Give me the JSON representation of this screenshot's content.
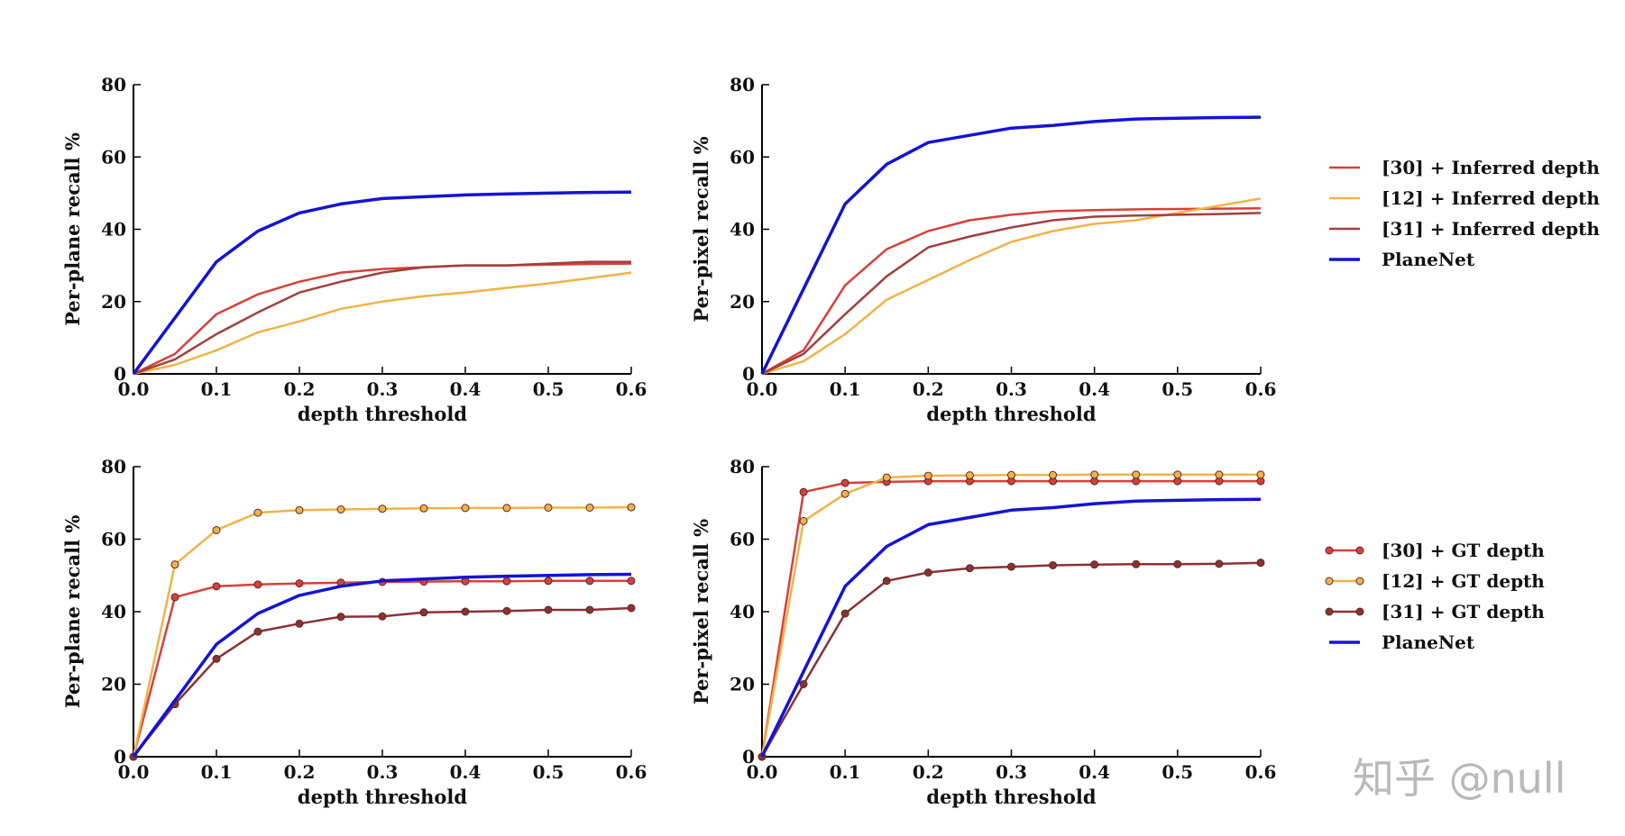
{
  "watermark": "知乎 @null",
  "colors": {
    "method30": "#d7403a",
    "method12": "#f0b347",
    "method31": "#8b3232",
    "planenet": "#1414d2"
  },
  "legends": [
    {
      "entries": [
        {
          "label": "[30] + Inferred depth",
          "color": "#d7403a",
          "marker": false
        },
        {
          "label": "[12] + Inferred depth",
          "color": "#f0b347",
          "marker": false
        },
        {
          "label": "[31] + Inferred depth",
          "color": "#a04040",
          "marker": false
        },
        {
          "label": "PlaneNet",
          "color": "#1414d2",
          "marker": false,
          "thick": true
        }
      ]
    },
    {
      "entries": [
        {
          "label": "[30] + GT depth",
          "color": "#d7403a",
          "marker": true
        },
        {
          "label": "[12] + GT depth",
          "color": "#f0b347",
          "marker": true
        },
        {
          "label": "[31] + GT depth",
          "color": "#8b3232",
          "marker": true
        },
        {
          "label": "PlaneNet",
          "color": "#1414d2",
          "marker": false,
          "thick": true
        }
      ]
    }
  ],
  "chart_data": [
    {
      "type": "line",
      "xlabel": "depth threshold",
      "ylabel": "Per-plane recall %",
      "xlim": [
        0.0,
        0.6
      ],
      "ylim": [
        0,
        80
      ],
      "xticks": [
        "0.0",
        "0.1",
        "0.2",
        "0.3",
        "0.4",
        "0.5",
        "0.6"
      ],
      "yticks": [
        "0",
        "20",
        "40",
        "60",
        "80"
      ],
      "x": [
        0.0,
        0.05,
        0.1,
        0.15,
        0.2,
        0.25,
        0.3,
        0.35,
        0.4,
        0.45,
        0.5,
        0.55,
        0.6
      ],
      "series": [
        {
          "name": "[30] + Inferred depth",
          "color": "#d7403a",
          "marker": false,
          "values": [
            0,
            5.5,
            16.5,
            22,
            25.5,
            28,
            29,
            29.5,
            30,
            30,
            30.2,
            30.4,
            30.5
          ]
        },
        {
          "name": "[12] + Inferred depth",
          "color": "#f0b347",
          "marker": false,
          "values": [
            0,
            2.5,
            6.5,
            11.5,
            14.5,
            18,
            20,
            21.5,
            22.5,
            23.8,
            25,
            26.5,
            28
          ]
        },
        {
          "name": "[31] + Inferred depth",
          "color": "#a04040",
          "marker": false,
          "values": [
            0,
            4,
            11,
            17,
            22.5,
            25.5,
            28,
            29.5,
            30,
            30,
            30.5,
            31,
            31
          ]
        },
        {
          "name": "PlaneNet",
          "color": "#1414d2",
          "marker": false,
          "thick": true,
          "values": [
            0,
            15.5,
            31,
            39.5,
            44.5,
            47,
            48.5,
            49,
            49.5,
            49.8,
            50,
            50.2,
            50.3
          ]
        }
      ]
    },
    {
      "type": "line",
      "xlabel": "depth threshold",
      "ylabel": "Per-pixel recall %",
      "xlim": [
        0.0,
        0.6
      ],
      "ylim": [
        0,
        80
      ],
      "xticks": [
        "0.0",
        "0.1",
        "0.2",
        "0.3",
        "0.4",
        "0.5",
        "0.6"
      ],
      "yticks": [
        "0",
        "20",
        "40",
        "60",
        "80"
      ],
      "x": [
        0.0,
        0.05,
        0.1,
        0.15,
        0.2,
        0.25,
        0.3,
        0.35,
        0.4,
        0.45,
        0.5,
        0.55,
        0.6
      ],
      "series": [
        {
          "name": "[30] + Inferred depth",
          "color": "#d7403a",
          "marker": false,
          "values": [
            0,
            6.5,
            24.5,
            34.5,
            39.5,
            42.5,
            44,
            45,
            45.3,
            45.5,
            45.6,
            45.7,
            45.8
          ]
        },
        {
          "name": "[12] + Inferred depth",
          "color": "#f0b347",
          "marker": false,
          "values": [
            0,
            3.5,
            11,
            20.5,
            26,
            31.5,
            36.5,
            39.5,
            41.5,
            42.5,
            44.5,
            46.5,
            48.5
          ]
        },
        {
          "name": "[31] + Inferred depth",
          "color": "#a04040",
          "marker": false,
          "values": [
            0,
            5.5,
            16.5,
            27,
            35,
            38,
            40.5,
            42.5,
            43.5,
            43.8,
            44,
            44.2,
            44.5
          ]
        },
        {
          "name": "PlaneNet",
          "color": "#1414d2",
          "marker": false,
          "thick": true,
          "values": [
            0,
            23.5,
            47,
            58,
            64,
            66,
            68,
            68.7,
            69.8,
            70.5,
            70.7,
            70.9,
            71
          ]
        }
      ]
    },
    {
      "type": "line",
      "xlabel": "depth threshold",
      "ylabel": "Per-plane recall %",
      "xlim": [
        0.0,
        0.6
      ],
      "ylim": [
        0,
        80
      ],
      "xticks": [
        "0.0",
        "0.1",
        "0.2",
        "0.3",
        "0.4",
        "0.5",
        "0.6"
      ],
      "yticks": [
        "0",
        "20",
        "40",
        "60",
        "80"
      ],
      "x": [
        0.0,
        0.05,
        0.1,
        0.15,
        0.2,
        0.25,
        0.3,
        0.35,
        0.4,
        0.45,
        0.5,
        0.55,
        0.6
      ],
      "series": [
        {
          "name": "[30] + GT depth",
          "color": "#d7403a",
          "marker": true,
          "values": [
            0,
            44,
            47,
            47.5,
            47.8,
            48,
            48.2,
            48.3,
            48.4,
            48.4,
            48.5,
            48.5,
            48.5
          ]
        },
        {
          "name": "[12] + GT depth",
          "color": "#f0b347",
          "marker": true,
          "values": [
            0,
            53,
            62.5,
            67.3,
            68,
            68.2,
            68.4,
            68.5,
            68.6,
            68.6,
            68.7,
            68.7,
            68.8
          ]
        },
        {
          "name": "[31] + GT depth",
          "color": "#8b3232",
          "marker": true,
          "values": [
            0,
            14.5,
            27,
            34.5,
            36.7,
            38.6,
            38.7,
            39.8,
            40,
            40.2,
            40.5,
            40.5,
            41
          ]
        },
        {
          "name": "PlaneNet",
          "color": "#1414d2",
          "marker": false,
          "thick": true,
          "values": [
            0,
            15.5,
            31,
            39.5,
            44.5,
            47,
            48.5,
            49,
            49.5,
            49.8,
            50,
            50.2,
            50.3
          ]
        }
      ]
    },
    {
      "type": "line",
      "xlabel": "depth threshold",
      "ylabel": "Per-pixel recall %",
      "xlim": [
        0.0,
        0.6
      ],
      "ylim": [
        0,
        80
      ],
      "xticks": [
        "0.0",
        "0.1",
        "0.2",
        "0.3",
        "0.4",
        "0.5",
        "0.6"
      ],
      "yticks": [
        "0",
        "20",
        "40",
        "60",
        "80"
      ],
      "x": [
        0.0,
        0.05,
        0.1,
        0.15,
        0.2,
        0.25,
        0.3,
        0.35,
        0.4,
        0.45,
        0.5,
        0.55,
        0.6
      ],
      "series": [
        {
          "name": "[30] + GT depth",
          "color": "#d7403a",
          "marker": true,
          "values": [
            0,
            73,
            75.5,
            75.8,
            76,
            76,
            76,
            76,
            76,
            76,
            76,
            76,
            76
          ]
        },
        {
          "name": "[12] + GT depth",
          "color": "#f0b347",
          "marker": true,
          "values": [
            0,
            65,
            72.5,
            77,
            77.5,
            77.6,
            77.7,
            77.7,
            77.8,
            77.8,
            77.8,
            77.8,
            77.8
          ]
        },
        {
          "name": "[31] + GT depth",
          "color": "#8b3232",
          "marker": true,
          "values": [
            0,
            20,
            39.5,
            48.5,
            50.8,
            52,
            52.4,
            52.8,
            53,
            53.1,
            53.1,
            53.2,
            53.5
          ]
        },
        {
          "name": "PlaneNet",
          "color": "#1414d2",
          "marker": false,
          "thick": true,
          "values": [
            0,
            23.5,
            47,
            58,
            64,
            66,
            68,
            68.7,
            69.8,
            70.5,
            70.7,
            70.9,
            71
          ]
        }
      ]
    }
  ]
}
